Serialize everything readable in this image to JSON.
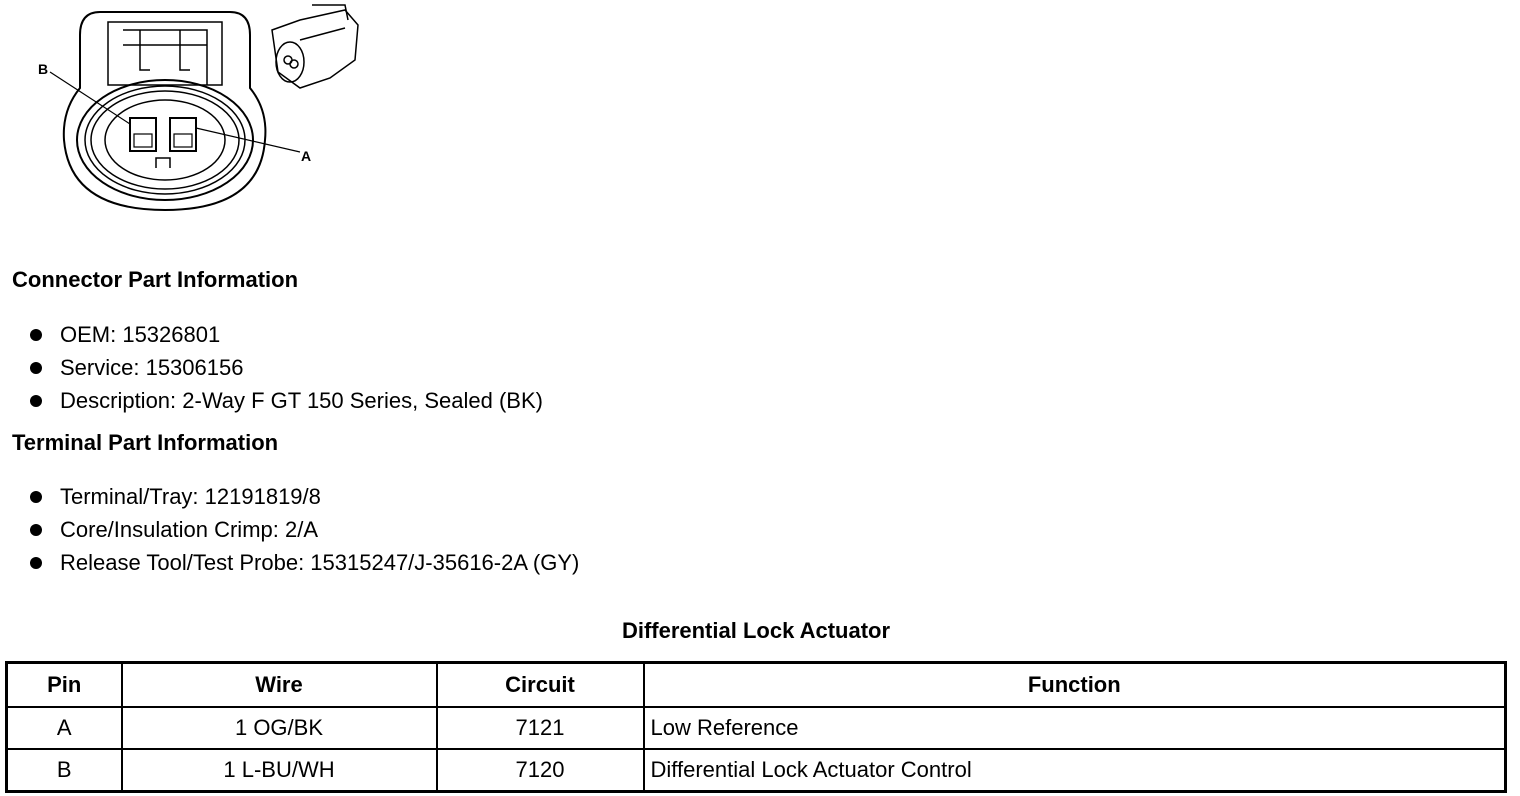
{
  "diagram": {
    "pin_labels": [
      "B",
      "A"
    ]
  },
  "connector_section": {
    "title": "Connector Part Information",
    "items": [
      "OEM: 15326801",
      "Service: 15306156",
      "Description: 2-Way F GT 150 Series, Sealed (BK)"
    ]
  },
  "terminal_section": {
    "title": "Terminal Part Information",
    "items": [
      "Terminal/Tray: 12191819/8",
      "Core/Insulation Crimp: 2/A",
      "Release Tool/Test Probe: 15315247/J-35616-2A (GY)"
    ]
  },
  "table": {
    "title": "Differential Lock Actuator",
    "headers": [
      "Pin",
      "Wire",
      "Circuit",
      "Function"
    ],
    "rows": [
      [
        "A",
        "1 OG/BK",
        "7121",
        "Low Reference"
      ],
      [
        "B",
        "1 L-BU/WH",
        "7120",
        "Differential Lock Actuator Control"
      ]
    ]
  }
}
